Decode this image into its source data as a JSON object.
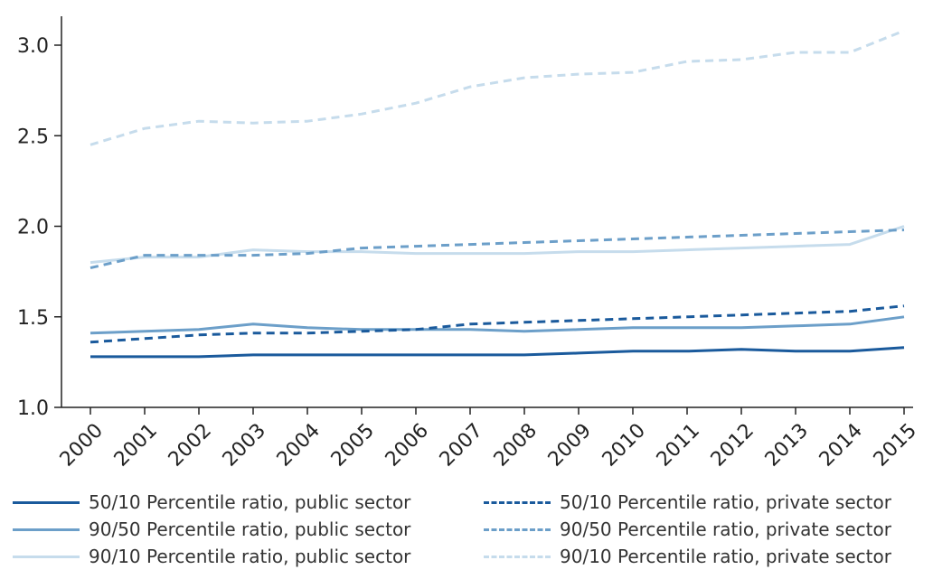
{
  "chart_data": {
    "type": "line",
    "title": "",
    "xlabel": "",
    "ylabel": "",
    "x": [
      2000,
      2001,
      2002,
      2003,
      2004,
      2005,
      2006,
      2007,
      2008,
      2009,
      2010,
      2011,
      2012,
      2013,
      2014,
      2015
    ],
    "x_tick_labels": [
      "2000",
      "2001",
      "2002",
      "2003",
      "2004",
      "2005",
      "2006",
      "2007",
      "2008",
      "2009",
      "2010",
      "2011",
      "2012",
      "2013",
      "2014",
      "2015"
    ],
    "ylim": [
      1.0,
      3.1
    ],
    "y_ticks": [
      1.0,
      1.5,
      2.0,
      2.5,
      3.0
    ],
    "y_tick_labels": [
      "1.0",
      "1.5",
      "2.0",
      "2.5",
      "3.0"
    ],
    "grid": false,
    "legend_position": "bottom",
    "series": [
      {
        "name": "50/10 Percentile ratio, public sector",
        "color": "#1a5a9c",
        "style": "solid",
        "values": [
          1.28,
          1.28,
          1.28,
          1.29,
          1.29,
          1.29,
          1.29,
          1.29,
          1.29,
          1.3,
          1.31,
          1.31,
          1.32,
          1.31,
          1.31,
          1.33
        ]
      },
      {
        "name": "90/50 Percentile ratio, public sector",
        "color": "#6c9fc9",
        "style": "solid",
        "values": [
          1.41,
          1.42,
          1.43,
          1.46,
          1.44,
          1.43,
          1.43,
          1.43,
          1.42,
          1.43,
          1.44,
          1.44,
          1.44,
          1.45,
          1.46,
          1.5
        ]
      },
      {
        "name": "90/10 Percentile ratio, public sector",
        "color": "#c6dcec",
        "style": "solid",
        "values": [
          1.8,
          1.83,
          1.83,
          1.87,
          1.86,
          1.86,
          1.85,
          1.85,
          1.85,
          1.86,
          1.86,
          1.87,
          1.88,
          1.89,
          1.9,
          2.0
        ]
      },
      {
        "name": "50/10 Percentile ratio, private sector",
        "color": "#1a5a9c",
        "style": "dashed",
        "values": [
          1.36,
          1.38,
          1.4,
          1.41,
          1.41,
          1.42,
          1.43,
          1.46,
          1.47,
          1.48,
          1.49,
          1.5,
          1.51,
          1.52,
          1.53,
          1.56
        ]
      },
      {
        "name": "90/50 Percentile ratio, private sector",
        "color": "#6c9fc9",
        "style": "dashed",
        "values": [
          1.77,
          1.84,
          1.84,
          1.84,
          1.85,
          1.88,
          1.89,
          1.9,
          1.91,
          1.92,
          1.93,
          1.94,
          1.95,
          1.96,
          1.97,
          1.98
        ]
      },
      {
        "name": "90/10 Percentile ratio, private sector",
        "color": "#c6dcec",
        "style": "dashed",
        "values": [
          2.45,
          2.54,
          2.58,
          2.57,
          2.58,
          2.62,
          2.68,
          2.77,
          2.82,
          2.84,
          2.85,
          2.91,
          2.92,
          2.96,
          2.96,
          3.08
        ]
      }
    ]
  }
}
